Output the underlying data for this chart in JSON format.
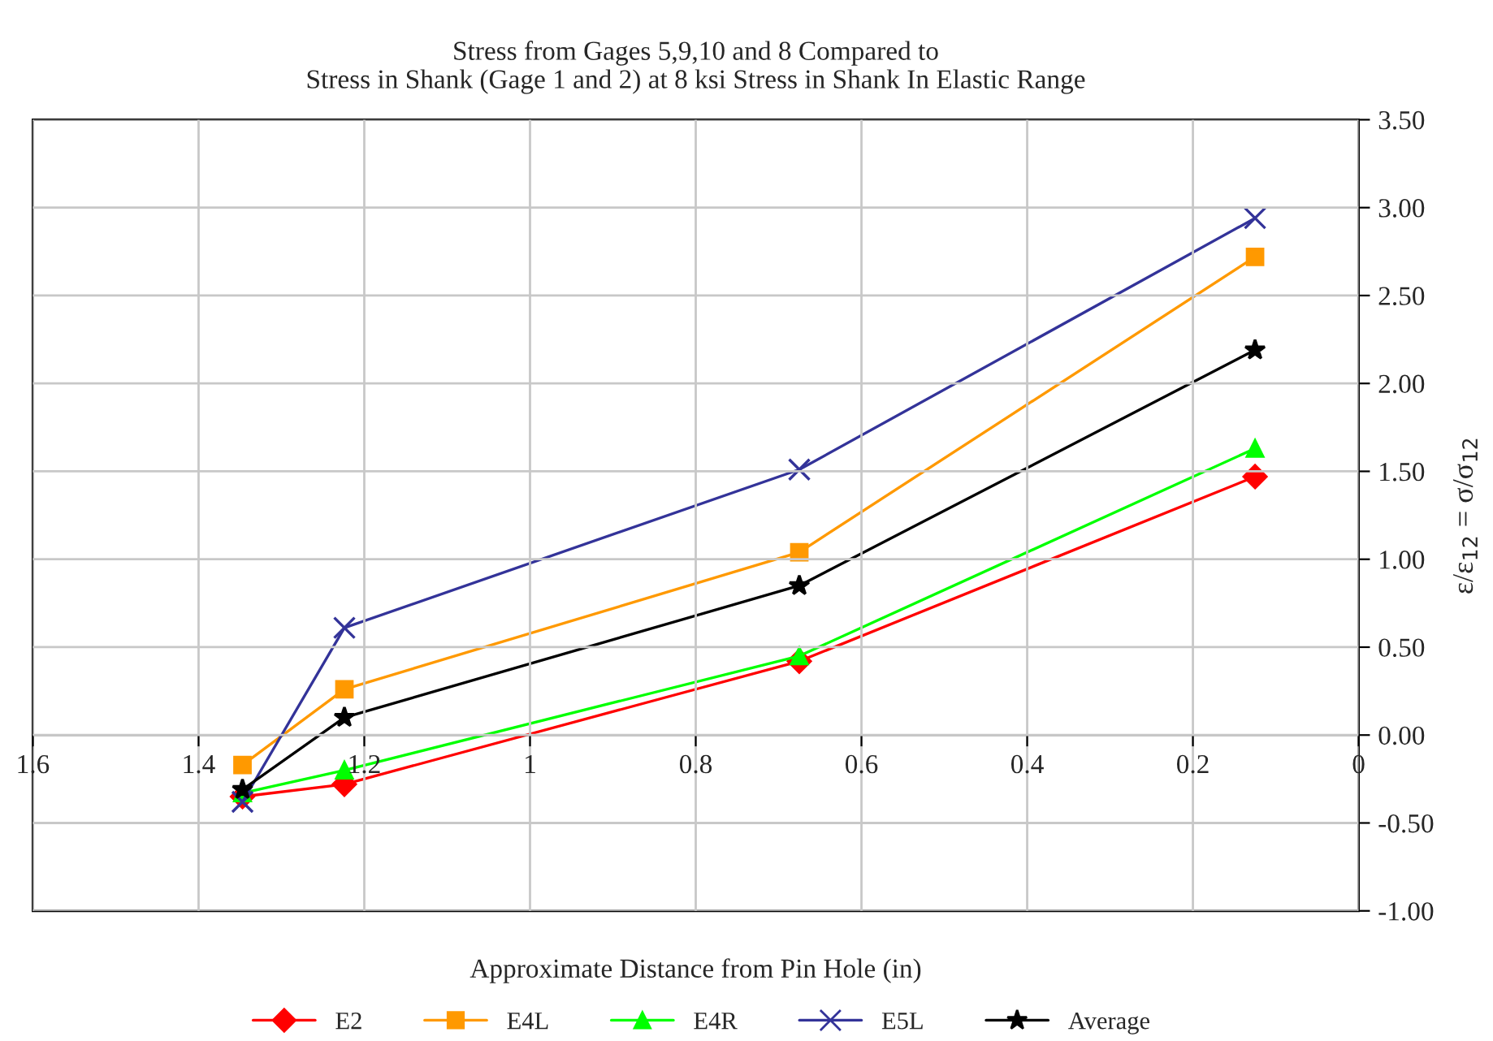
{
  "chart_data": {
    "type": "line",
    "title": "Stress from Gages 5,9,10 and 8 Compared to\nStress in Shank (Gage 1 and 2) at 8 ksi Stress in Shank In Elastic Range",
    "xlabel": "Approximate Distance from Pin Hole (in)",
    "y2label": "ε/ε$_{12}$ = σ/σ$_{12}$",
    "x": [
      1.347,
      1.224,
      0.675,
      0.125
    ],
    "series": [
      {
        "name": "E2",
        "color": "#ff0000",
        "marker": "diamond",
        "axis": "y2",
        "values": [
          -0.35,
          -0.28,
          0.42,
          1.47
        ]
      },
      {
        "name": "E4L",
        "color": "#ff9900",
        "marker": "square",
        "axis": "y2",
        "values": [
          -0.17,
          0.26,
          1.04,
          2.72
        ]
      },
      {
        "name": "E4R",
        "color": "#00ff00",
        "marker": "triangle",
        "axis": "y2",
        "values": [
          -0.33,
          -0.2,
          0.45,
          1.63
        ]
      },
      {
        "name": "E5L",
        "color": "#333399",
        "marker": "cross",
        "axis": "y2",
        "values": [
          -0.38,
          0.61,
          1.51,
          2.94
        ]
      },
      {
        "name": "Average",
        "color": "#000000",
        "marker": "star",
        "axis": "y2",
        "values": [
          -0.31,
          0.1,
          0.85,
          2.19
        ]
      }
    ],
    "xlim": [
      1.6,
      0
    ],
    "xticks": [
      1.6,
      1.4,
      1.2,
      1,
      0.8,
      0.6,
      0.4,
      0.2,
      0
    ],
    "y2lim": [
      -1,
      3.5
    ],
    "y2ticks": [
      {
        "value": -1,
        "label": "-1.00"
      },
      {
        "value": -0.5,
        "label": "-0.50"
      },
      {
        "value": 0,
        "label": "0.00"
      },
      {
        "value": 0.5,
        "label": "0.50"
      },
      {
        "value": 1,
        "label": "1.00"
      },
      {
        "value": 1.5,
        "label": "1.50"
      },
      {
        "value": 2,
        "label": "2.00"
      },
      {
        "value": 2.5,
        "label": "2.50"
      },
      {
        "value": 3,
        "label": "3.00"
      },
      {
        "value": 3.5,
        "label": "3.50"
      }
    ],
    "grid": true,
    "legend": "bottom",
    "line_style": "solid"
  }
}
